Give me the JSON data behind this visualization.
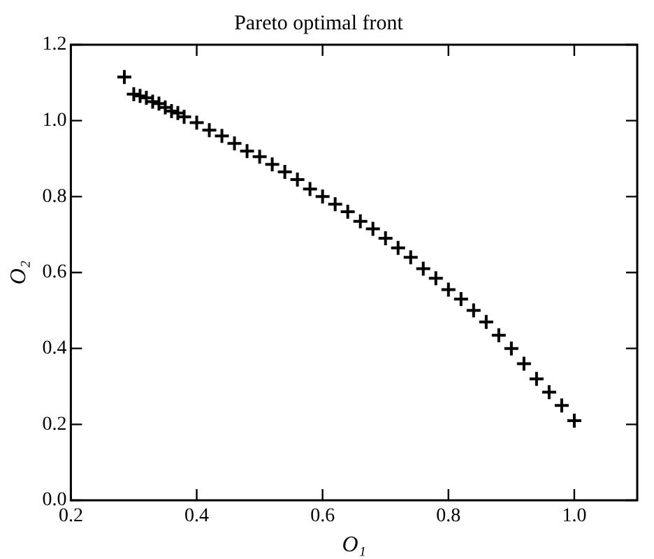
{
  "chart_data": {
    "type": "scatter",
    "title": "Pareto optimal front",
    "xlabel": "O₁",
    "ylabel": "O₂",
    "xlim": [
      0.2,
      1.1
    ],
    "ylim": [
      0,
      1.2
    ],
    "xticks": [
      0.2,
      0.4,
      0.6,
      0.8,
      {
        "value": 1,
        "label": "1.0"
      }
    ],
    "yticks": [
      {
        "value": 0,
        "label": "0.0"
      },
      0.2,
      0.4,
      0.6,
      0.8,
      {
        "value": 1,
        "label": "1.0"
      },
      1.2
    ],
    "marker": "cross",
    "grid": false,
    "legend": false,
    "series": [
      {
        "color": "#000000",
        "x": [
          0.285,
          0.3,
          0.31,
          0.32,
          0.33,
          0.34,
          0.35,
          0.36,
          0.37,
          0.38,
          0.4,
          0.42,
          0.44,
          0.46,
          0.48,
          0.5,
          0.52,
          0.54,
          0.56,
          0.58,
          0.6,
          0.62,
          0.64,
          0.66,
          0.68,
          0.7,
          0.72,
          0.74,
          0.76,
          0.78,
          0.8,
          0.82,
          0.84,
          0.86,
          0.88,
          0.9,
          0.92,
          0.94,
          0.96,
          0.98,
          1.0
        ],
        "values": [
          1.115,
          1.07,
          1.065,
          1.06,
          1.05,
          1.045,
          1.035,
          1.025,
          1.02,
          1.01,
          0.995,
          0.975,
          0.96,
          0.94,
          0.92,
          0.905,
          0.885,
          0.865,
          0.845,
          0.82,
          0.8,
          0.78,
          0.76,
          0.735,
          0.715,
          0.69,
          0.665,
          0.64,
          0.61,
          0.585,
          0.555,
          0.53,
          0.5,
          0.47,
          0.435,
          0.4,
          0.36,
          0.32,
          0.285,
          0.25,
          0.21
        ]
      }
    ]
  }
}
